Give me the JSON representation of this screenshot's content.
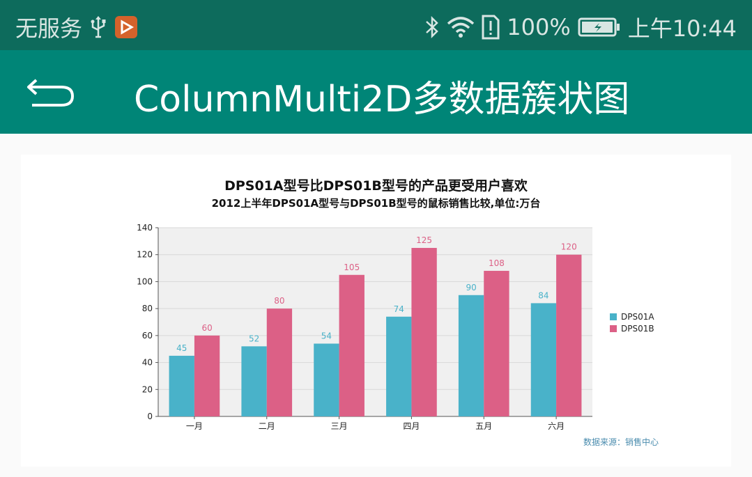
{
  "status_bar": {
    "carrier": "无服务",
    "battery_percent": "100%",
    "time": "上午10:44",
    "icons": [
      "usb-icon",
      "app-notification-icon",
      "bluetooth-icon",
      "wifi-icon",
      "sim-alert-icon",
      "battery-charging-icon"
    ]
  },
  "app_bar": {
    "back_icon": "back-arrow-icon",
    "title": "ColumnMulti2D多数据簇状图",
    "background_color": "#008577"
  },
  "chart": {
    "title": "DPS01A型号比DPS01B型号的产品更受用户喜欢",
    "subtitle": "2012上半年DPS01A型号与DPS01B型号的鼠标销售比较,单位:万台",
    "credits": "数据来源：销售中心"
  },
  "chart_data": {
    "type": "bar",
    "categories": [
      "一月",
      "二月",
      "三月",
      "四月",
      "五月",
      "六月"
    ],
    "series": [
      {
        "name": "DPS01A",
        "values": [
          45,
          52,
          54,
          74,
          90,
          84
        ],
        "color": "#49b2c9"
      },
      {
        "name": "DPS01B",
        "values": [
          60,
          80,
          105,
          125,
          108,
          120
        ],
        "color": "#dc6086"
      }
    ],
    "title": "DPS01A型号比DPS01B型号的产品更受用户喜欢",
    "subtitle": "2012上半年DPS01A型号与DPS01B型号的鼠标销售比较,单位:万台",
    "xlabel": "",
    "ylabel": "",
    "ylim": [
      0,
      140
    ],
    "yticks": [
      0,
      20,
      40,
      60,
      80,
      100,
      120,
      140
    ],
    "grid": true,
    "legend": "right",
    "data_labels": true,
    "plot_background": "#f0f0f0"
  }
}
